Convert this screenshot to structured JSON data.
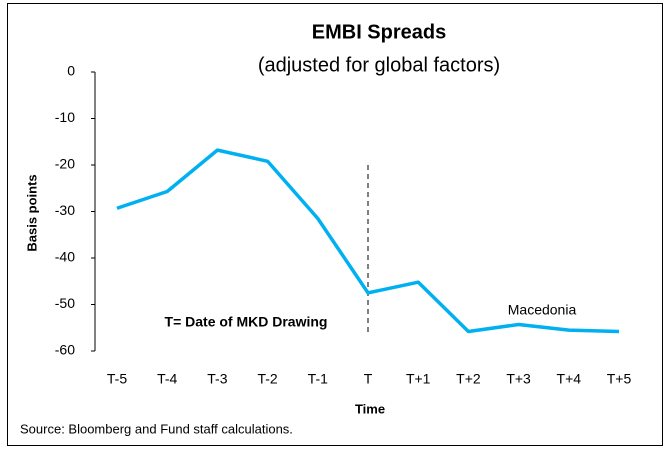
{
  "chart_data": {
    "type": "line",
    "title": "EMBI Spreads",
    "subtitle": "(adjusted for global factors)",
    "y_label": "Basis points",
    "x_label": "Time",
    "categories": [
      "T-5",
      "T-4",
      "T-3",
      "T-2",
      "T-1",
      "T",
      "T+1",
      "T+2",
      "T+3",
      "T+4",
      "T+5"
    ],
    "values": [
      -29.3,
      -25.7,
      -16.8,
      -19.2,
      -31.5,
      -47.5,
      -45.2,
      -55.8,
      -54.3,
      -55.5,
      -55.8
    ],
    "color": "#00b0f0",
    "ylim": [
      -60,
      0
    ],
    "yticks": [
      0,
      -10,
      -20,
      -30,
      -40,
      -50,
      -60
    ],
    "grid": false,
    "annotations": [
      "T= Date of MKD Drawing",
      "Macedonia"
    ],
    "source": "Source: Bloomberg and Fund staff calculations."
  }
}
